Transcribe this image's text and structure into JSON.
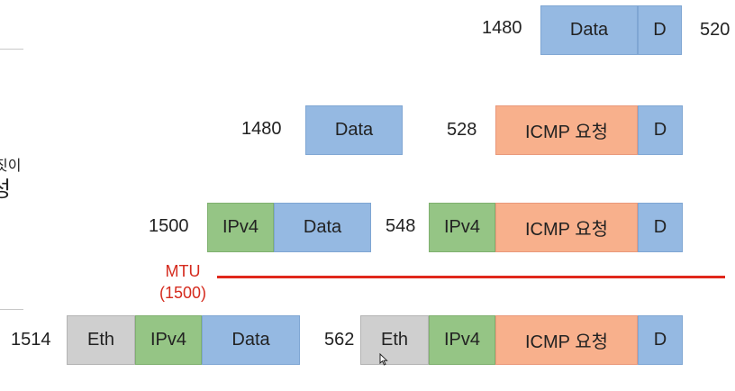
{
  "left_partial": {
    "line1": "짓이",
    "line2": "성"
  },
  "labels": {
    "data": "Data",
    "ipv4": "IPv4",
    "icmp": "ICMP 요청",
    "eth": "Eth",
    "d": "D"
  },
  "rows": {
    "row1": {
      "left_size": "1480",
      "right_size": "520"
    },
    "row2": {
      "left_size": "1480",
      "right_size": "528"
    },
    "row3": {
      "left_size": "1500",
      "right_size": "548"
    },
    "row4": {
      "left_size": "1514",
      "right_size": "562"
    }
  },
  "mtu": {
    "label": "MTU",
    "value": "(1500)"
  },
  "colors": {
    "data": "#95b9e2",
    "ipv4": "#95c585",
    "icmp": "#f8b08c",
    "eth": "#cfcfcf",
    "mtu_line": "#e0271b"
  }
}
